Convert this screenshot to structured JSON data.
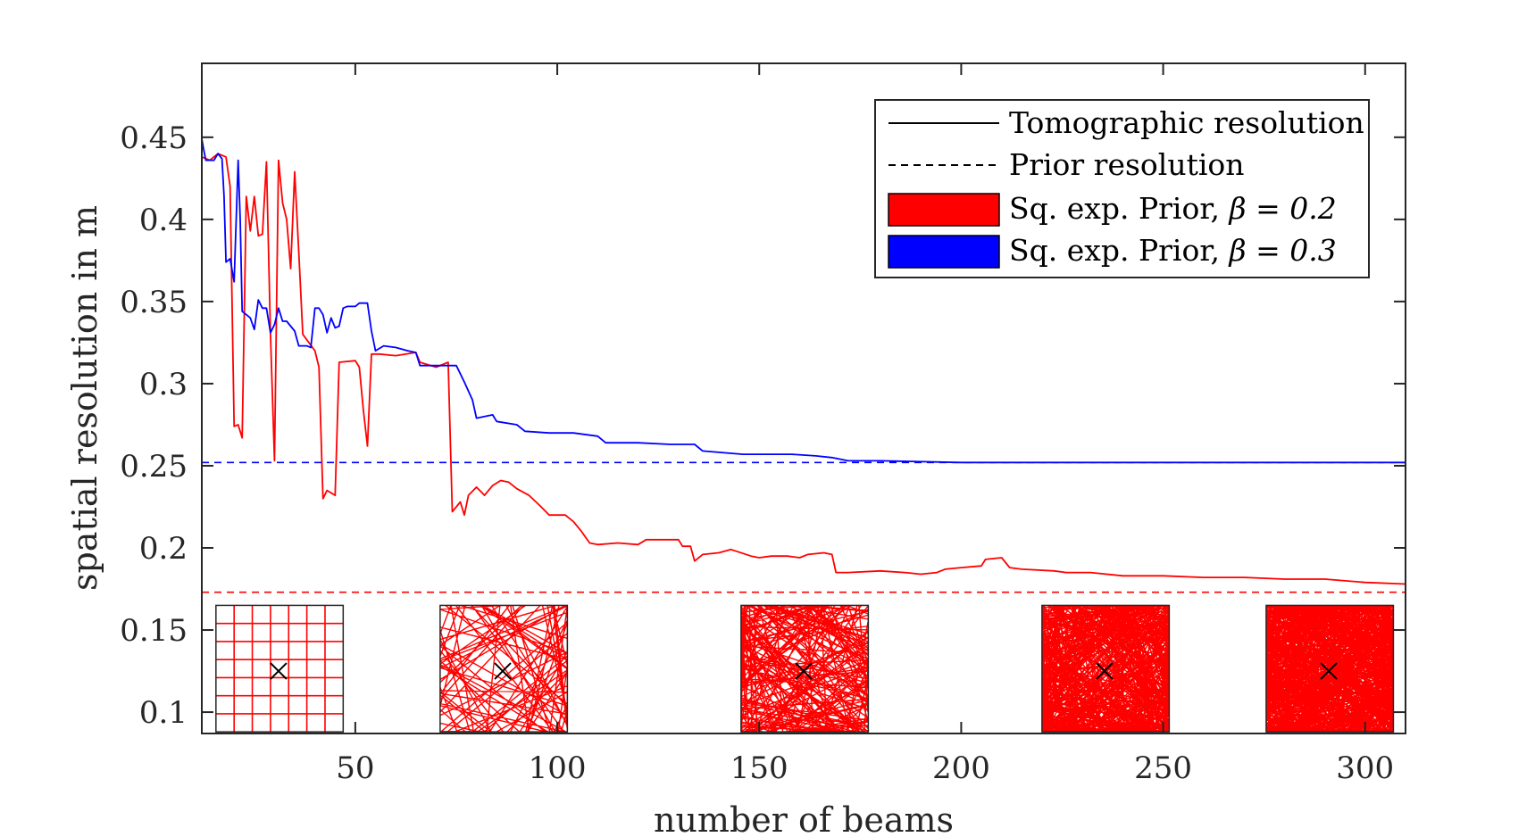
{
  "chart_data": {
    "type": "line",
    "xlabel": "number of beams",
    "ylabel": "spatial resolution in m",
    "xlim": [
      12,
      310
    ],
    "ylim": [
      0.087,
      0.495
    ],
    "xticks": [
      50,
      100,
      150,
      200,
      250,
      300
    ],
    "yticks": [
      0.1,
      0.15,
      0.2,
      0.25,
      0.3,
      0.35,
      0.4,
      0.45
    ],
    "xtick_labels": [
      "50",
      "100",
      "150",
      "200",
      "250",
      "300"
    ],
    "ytick_labels": [
      "0.1",
      "0.15",
      "0.2",
      "0.25",
      "0.3",
      "0.35",
      "0.4",
      "0.45"
    ],
    "grid": false,
    "legend_position": "top-right",
    "legend": [
      {
        "text": "Tomographic resolution",
        "style": "solid",
        "color": "#000000"
      },
      {
        "text": "Prior resolution",
        "style": "dashed",
        "color": "#000000"
      },
      {
        "text": "Sq. exp. Prior, ",
        "math": "β = 0.2",
        "style": "patch",
        "color": "#ff0000"
      },
      {
        "text": "Sq. exp. Prior, ",
        "math": "β = 0.3",
        "style": "patch",
        "color": "#0000ff"
      }
    ],
    "series": [
      {
        "color": "#ff0000",
        "style": "solid",
        "points": [
          [
            12,
            0.438
          ],
          [
            14,
            0.436
          ],
          [
            16,
            0.44
          ],
          [
            18,
            0.438
          ],
          [
            19,
            0.42
          ],
          [
            20,
            0.274
          ],
          [
            21,
            0.275
          ],
          [
            22,
            0.267
          ],
          [
            23,
            0.414
          ],
          [
            24,
            0.393
          ],
          [
            25,
            0.414
          ],
          [
            26,
            0.39
          ],
          [
            27,
            0.391
          ],
          [
            28,
            0.435
          ],
          [
            29,
            0.33
          ],
          [
            30,
            0.253
          ],
          [
            31,
            0.436
          ],
          [
            32,
            0.41
          ],
          [
            33,
            0.4
          ],
          [
            34,
            0.37
          ],
          [
            35,
            0.429
          ],
          [
            36,
            0.38
          ],
          [
            37,
            0.33
          ],
          [
            40,
            0.32
          ],
          [
            41,
            0.31
          ],
          [
            42,
            0.23
          ],
          [
            43,
            0.235
          ],
          [
            45,
            0.232
          ],
          [
            46,
            0.313
          ],
          [
            50,
            0.314
          ],
          [
            51,
            0.31
          ],
          [
            52,
            0.284
          ],
          [
            53,
            0.262
          ],
          [
            54,
            0.318
          ],
          [
            56,
            0.318
          ],
          [
            60,
            0.317
          ],
          [
            65,
            0.319
          ],
          [
            66,
            0.313
          ],
          [
            70,
            0.31
          ],
          [
            73,
            0.313
          ],
          [
            74,
            0.222
          ],
          [
            76,
            0.228
          ],
          [
            77,
            0.22
          ],
          [
            78,
            0.232
          ],
          [
            80,
            0.237
          ],
          [
            82,
            0.232
          ],
          [
            84,
            0.238
          ],
          [
            86,
            0.241
          ],
          [
            88,
            0.24
          ],
          [
            90,
            0.236
          ],
          [
            93,
            0.232
          ],
          [
            96,
            0.225
          ],
          [
            98,
            0.22
          ],
          [
            102,
            0.22
          ],
          [
            104,
            0.216
          ],
          [
            106,
            0.21
          ],
          [
            108,
            0.203
          ],
          [
            110,
            0.202
          ],
          [
            115,
            0.203
          ],
          [
            120,
            0.202
          ],
          [
            122,
            0.205
          ],
          [
            130,
            0.205
          ],
          [
            131,
            0.201
          ],
          [
            133,
            0.201
          ],
          [
            134,
            0.192
          ],
          [
            136,
            0.196
          ],
          [
            140,
            0.197
          ],
          [
            143,
            0.199
          ],
          [
            148,
            0.195
          ],
          [
            150,
            0.194
          ],
          [
            153,
            0.195
          ],
          [
            157,
            0.195
          ],
          [
            160,
            0.194
          ],
          [
            162,
            0.196
          ],
          [
            166,
            0.197
          ],
          [
            168,
            0.196
          ],
          [
            169,
            0.185
          ],
          [
            172,
            0.185
          ],
          [
            180,
            0.186
          ],
          [
            186,
            0.185
          ],
          [
            190,
            0.184
          ],
          [
            194,
            0.185
          ],
          [
            196,
            0.187
          ],
          [
            200,
            0.188
          ],
          [
            205,
            0.189
          ],
          [
            206,
            0.193
          ],
          [
            210,
            0.194
          ],
          [
            212,
            0.188
          ],
          [
            215,
            0.187
          ],
          [
            223,
            0.186
          ],
          [
            226,
            0.185
          ],
          [
            232,
            0.185
          ],
          [
            240,
            0.183
          ],
          [
            250,
            0.183
          ],
          [
            260,
            0.182
          ],
          [
            270,
            0.182
          ],
          [
            280,
            0.181
          ],
          [
            290,
            0.181
          ],
          [
            300,
            0.179
          ],
          [
            310,
            0.178
          ]
        ]
      },
      {
        "color": "#0000ff",
        "style": "solid",
        "points": [
          [
            12,
            0.449
          ],
          [
            12.5,
            0.442
          ],
          [
            13,
            0.436
          ],
          [
            15,
            0.436
          ],
          [
            16,
            0.44
          ],
          [
            17,
            0.437
          ],
          [
            17.5,
            0.414
          ],
          [
            18,
            0.374
          ],
          [
            19,
            0.376
          ],
          [
            20,
            0.362
          ],
          [
            21,
            0.436
          ],
          [
            21.5,
            0.4
          ],
          [
            22,
            0.344
          ],
          [
            23,
            0.342
          ],
          [
            24,
            0.34
          ],
          [
            25,
            0.333
          ],
          [
            26,
            0.351
          ],
          [
            27,
            0.346
          ],
          [
            28,
            0.346
          ],
          [
            29,
            0.331
          ],
          [
            30,
            0.336
          ],
          [
            31,
            0.346
          ],
          [
            32,
            0.338
          ],
          [
            33,
            0.338
          ],
          [
            34,
            0.335
          ],
          [
            35,
            0.332
          ],
          [
            36,
            0.323
          ],
          [
            38,
            0.323
          ],
          [
            39,
            0.322
          ],
          [
            40,
            0.346
          ],
          [
            41,
            0.346
          ],
          [
            42,
            0.342
          ],
          [
            43,
            0.331
          ],
          [
            44,
            0.34
          ],
          [
            45,
            0.334
          ],
          [
            46,
            0.335
          ],
          [
            47,
            0.346
          ],
          [
            48,
            0.347
          ],
          [
            50,
            0.347
          ],
          [
            51,
            0.349
          ],
          [
            53,
            0.349
          ],
          [
            54,
            0.332
          ],
          [
            55,
            0.32
          ],
          [
            57,
            0.323
          ],
          [
            60,
            0.322
          ],
          [
            63,
            0.32
          ],
          [
            65,
            0.319
          ],
          [
            66,
            0.311
          ],
          [
            70,
            0.311
          ],
          [
            75,
            0.311
          ],
          [
            77,
            0.301
          ],
          [
            79,
            0.29
          ],
          [
            80,
            0.279
          ],
          [
            84,
            0.281
          ],
          [
            85,
            0.277
          ],
          [
            90,
            0.275
          ],
          [
            92,
            0.271
          ],
          [
            98,
            0.27
          ],
          [
            104,
            0.27
          ],
          [
            110,
            0.268
          ],
          [
            112,
            0.264
          ],
          [
            120,
            0.264
          ],
          [
            128,
            0.263
          ],
          [
            134,
            0.263
          ],
          [
            136,
            0.259
          ],
          [
            146,
            0.257
          ],
          [
            158,
            0.257
          ],
          [
            164,
            0.256
          ],
          [
            168,
            0.255
          ],
          [
            172,
            0.253
          ],
          [
            180,
            0.253
          ],
          [
            200,
            0.252
          ],
          [
            250,
            0.252
          ],
          [
            310,
            0.252
          ]
        ]
      },
      {
        "color": "#0000ff",
        "style": "dashed",
        "points": [
          [
            12,
            0.252
          ],
          [
            310,
            0.252
          ]
        ]
      },
      {
        "color": "#ff0000",
        "style": "dashed",
        "points": [
          [
            12,
            0.173
          ],
          [
            310,
            0.173
          ]
        ]
      }
    ],
    "insets": [
      {
        "x_range": [
          15.5,
          47
        ],
        "y_range": [
          0.088,
          0.165
        ],
        "pattern": "grid",
        "marker": [
          31,
          0.125
        ]
      },
      {
        "x_range": [
          71,
          102.5
        ],
        "y_range": [
          0.088,
          0.165
        ],
        "pattern": "random",
        "density": 90,
        "marker": [
          86.5,
          0.125
        ]
      },
      {
        "x_range": [
          145.5,
          177
        ],
        "y_range": [
          0.088,
          0.165
        ],
        "pattern": "random",
        "density": 260,
        "marker": [
          161,
          0.125
        ]
      },
      {
        "x_range": [
          220,
          251.5
        ],
        "y_range": [
          0.088,
          0.165
        ],
        "pattern": "random",
        "density": 520,
        "marker": [
          235.5,
          0.125
        ]
      },
      {
        "x_range": [
          275.5,
          307
        ],
        "y_range": [
          0.088,
          0.165
        ],
        "pattern": "random",
        "density": 700,
        "marker": [
          291,
          0.125
        ]
      }
    ]
  }
}
